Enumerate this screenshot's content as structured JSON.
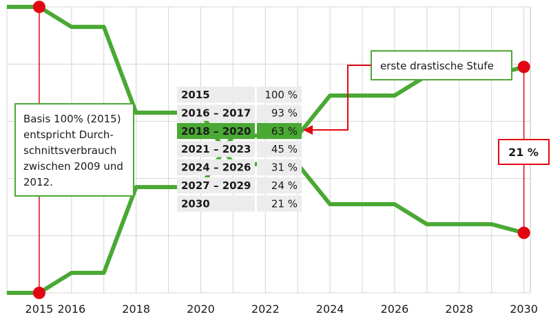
{
  "chart_data": {
    "type": "line",
    "x": [
      2014,
      2015,
      2016,
      2017,
      2018,
      2019,
      2020,
      2021,
      2022,
      2023,
      2024,
      2025,
      2026,
      2027,
      2028,
      2029,
      2030
    ],
    "ylim": [
      0,
      100
    ],
    "xlim": [
      2014,
      2030.2
    ],
    "grid": true,
    "series": [
      {
        "values": [
          100,
          100,
          93,
          93,
          63,
          63,
          63,
          45,
          45,
          45,
          31,
          31,
          31,
          24,
          24,
          24,
          21
        ]
      },
      {
        "values": [
          0,
          0,
          7,
          7,
          37,
          37,
          37,
          55,
          55,
          55,
          69,
          69,
          69,
          76,
          76,
          76,
          79
        ]
      }
    ],
    "x_tick_labels": [
      "2015",
      "2016",
      "2018",
      "2020",
      "2022",
      "2024",
      "2026",
      "2028",
      "2030"
    ],
    "x_tick_values": [
      2015,
      2016,
      2018,
      2020,
      2022,
      2024,
      2026,
      2028,
      2030
    ],
    "table": [
      {
        "period": "2015",
        "value": "100 %"
      },
      {
        "period": "2016 – 2017",
        "value": "93 %"
      },
      {
        "period": "2018 – 2020",
        "value": "63 %",
        "highlight": true
      },
      {
        "period": "2021 – 2023",
        "value": "45 %"
      },
      {
        "period": "2024 – 2026",
        "value": "31 %"
      },
      {
        "period": "2027 – 2029",
        "value": "24 %"
      },
      {
        "period": "2030",
        "value": "21 %"
      }
    ],
    "annotations": {
      "basis_lines": [
        "Basis 100% (2015)",
        "entspricht Durch-",
        "schnittsverbrauch",
        "zwischen 2009 und",
        "2012."
      ],
      "stufe": "erste drastische Stufe",
      "gap_label": "21 %",
      "highlight_year": 2015
    }
  },
  "colors": {
    "line": "#4aa834",
    "marker": "#e20613",
    "grid": "#d4d4d4",
    "table_bg": "#ececec",
    "table_highlight": "#4aa834"
  }
}
